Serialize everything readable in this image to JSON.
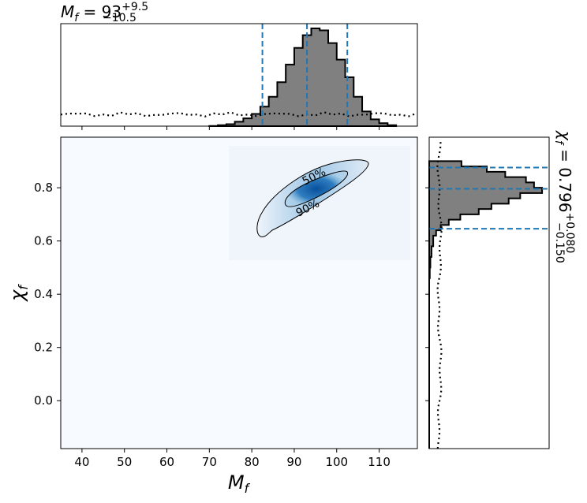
{
  "chart_data": [
    {
      "type": "histogram",
      "panel": "top marginal",
      "title_base": "M",
      "title_sub": "f",
      "title_eq": " = 93",
      "title_sup": "+9.5",
      "title_low": "−10.5",
      "xlim": [
        35,
        119
      ],
      "median": 93,
      "interval_lines": [
        82.5,
        93,
        102.5
      ],
      "bin_edges": [
        70,
        72,
        74,
        76,
        78,
        80,
        82,
        84,
        86,
        88,
        90,
        92,
        94,
        96,
        98,
        100,
        102,
        104,
        106,
        108,
        110,
        112,
        114
      ],
      "posterior_counts": [
        0.002,
        0.01,
        0.02,
        0.045,
        0.08,
        0.125,
        0.2,
        0.3,
        0.45,
        0.63,
        0.8,
        0.93,
        1.0,
        0.98,
        0.85,
        0.68,
        0.5,
        0.3,
        0.15,
        0.07,
        0.03,
        0.01
      ],
      "prior_level": 0.12
    },
    {
      "type": "heatmap",
      "panel": "2D joint",
      "xlabel_base": "M",
      "xlabel_sub": "f",
      "ylabel_base": "χ",
      "ylabel_sub": "f",
      "xlim": [
        35,
        119
      ],
      "ylim": [
        -0.18,
        0.99
      ],
      "xticks": [
        "40",
        "50",
        "60",
        "70",
        "80",
        "90",
        "100",
        "110"
      ],
      "xtick_values": [
        40,
        50,
        60,
        70,
        80,
        90,
        100,
        110
      ],
      "yticks": [
        "0.0",
        "0.2",
        "0.4",
        "0.6",
        "0.8"
      ],
      "ytick_values": [
        0.0,
        0.2,
        0.4,
        0.6,
        0.8
      ],
      "contour_labels": [
        "50%",
        "90%"
      ],
      "peak": {
        "x": 94,
        "y": 0.805
      }
    },
    {
      "type": "histogram",
      "panel": "right marginal",
      "orientation": "horizontal",
      "title_base": "χ",
      "title_sub": "f",
      "title_eq": " = 0.796",
      "title_sup": "+0.080",
      "title_low": "−0.150",
      "ylim": [
        -0.18,
        0.99
      ],
      "median": 0.796,
      "interval_lines": [
        0.646,
        0.796,
        0.876
      ],
      "bin_edges": [
        -0.18,
        -0.14,
        -0.1,
        -0.06,
        -0.02,
        0.02,
        0.06,
        0.1,
        0.14,
        0.18,
        0.22,
        0.26,
        0.3,
        0.34,
        0.38,
        0.42,
        0.46,
        0.5,
        0.54,
        0.58,
        0.62,
        0.64,
        0.66,
        0.68,
        0.7,
        0.72,
        0.74,
        0.76,
        0.78,
        0.8,
        0.82,
        0.84,
        0.86,
        0.88,
        0.9
      ],
      "posterior_counts": [
        0,
        0,
        0,
        0,
        0,
        0,
        0,
        0,
        0,
        0,
        0,
        0,
        0,
        0,
        0,
        0,
        0.005,
        0.01,
        0.02,
        0.035,
        0.06,
        0.1,
        0.17,
        0.27,
        0.43,
        0.54,
        0.69,
        0.79,
        0.98,
        0.91,
        0.84,
        0.66,
        0.5,
        0.28
      ],
      "prior_level": 0.09
    }
  ]
}
